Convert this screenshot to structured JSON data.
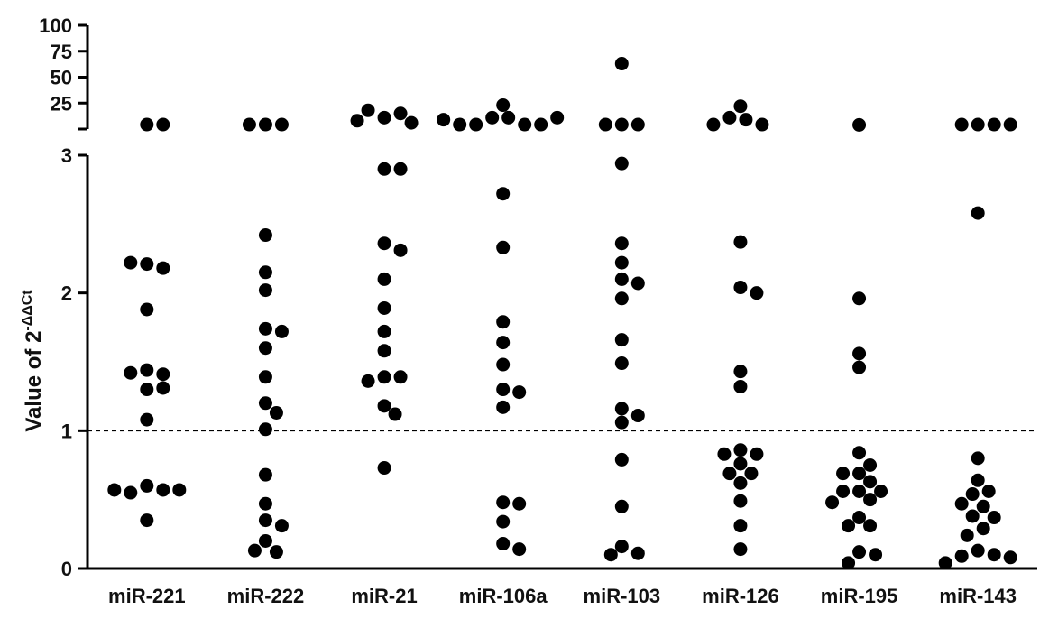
{
  "chart_data": {
    "type": "scatter",
    "y_label": "Value of  2",
    "y_label_sup": "-ΔΔCt",
    "categories": [
      "miR-221",
      "miR-222",
      "miR-21",
      "miR-106a",
      "miR-103",
      "miR-126",
      "miR-195",
      "miR-143"
    ],
    "values": [
      [
        4.3,
        4.3,
        2.21,
        2.18,
        2.22,
        1.88,
        1.44,
        1.41,
        1.42,
        1.3,
        1.31,
        1.08,
        0.6,
        0.57,
        0.55,
        0.57,
        0.57,
        0.35
      ],
      [
        4.3,
        4.3,
        4.3,
        2.42,
        2.15,
        2.02,
        1.74,
        1.72,
        1.6,
        1.39,
        1.2,
        1.13,
        1.01,
        0.68,
        0.47,
        0.35,
        0.31,
        0.2,
        0.12,
        0.13
      ],
      [
        11,
        15,
        18,
        8,
        6,
        2.9,
        2.9,
        2.36,
        2.31,
        2.1,
        1.89,
        1.72,
        1.58,
        1.39,
        1.39,
        1.36,
        1.18,
        1.12,
        0.73
      ],
      [
        23,
        11,
        11,
        4.3,
        4.3,
        4.3,
        4.3,
        11,
        9,
        2.72,
        2.33,
        1.79,
        1.64,
        1.48,
        1.3,
        1.28,
        1.17,
        0.48,
        0.47,
        0.34,
        0.18,
        0.14
      ],
      [
        63,
        4.3,
        4.3,
        4.3,
        2.94,
        2.36,
        2.22,
        2.1,
        2.07,
        1.96,
        1.66,
        1.49,
        1.16,
        1.11,
        1.06,
        0.79,
        0.45,
        0.16,
        0.11,
        0.1
      ],
      [
        22,
        9,
        11,
        4.3,
        4.3,
        2.37,
        2.04,
        2.0,
        1.43,
        1.32,
        0.86,
        0.83,
        0.83,
        0.76,
        0.69,
        0.69,
        0.62,
        0.49,
        0.31,
        0.14
      ],
      [
        4,
        1.96,
        1.56,
        1.46,
        0.84,
        0.75,
        0.69,
        0.69,
        0.63,
        0.56,
        0.56,
        0.56,
        0.5,
        0.48,
        0.37,
        0.31,
        0.31,
        0.12,
        0.1,
        0.04
      ],
      [
        4.3,
        4.3,
        4.3,
        4.3,
        2.58,
        0.8,
        0.64,
        0.56,
        0.54,
        0.47,
        0.45,
        0.38,
        0.37,
        0.29,
        0.24,
        0.13,
        0.1,
        0.09,
        0.08,
        0.04
      ]
    ],
    "color": "#000000",
    "ylim": [
      0,
      3
    ],
    "yticks": [
      0,
      1,
      2,
      3
    ],
    "y2lim": [
      0,
      100
    ],
    "y2ticks": [
      25,
      50,
      75,
      100
    ],
    "reference_line": 1
  }
}
